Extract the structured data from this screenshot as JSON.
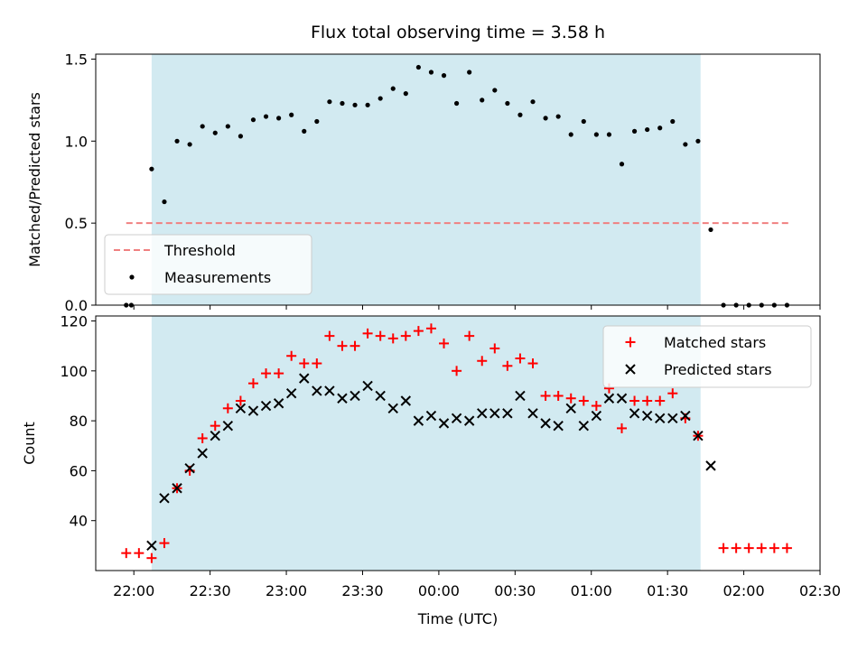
{
  "chart_data": [
    {
      "type": "scatter",
      "title": "Flux total observing time = 3.58 h",
      "ylabel": "Matched/Predicted stars",
      "ylim": [
        0,
        1.53
      ],
      "yticks": [
        "0.0",
        "0.5",
        "1.0",
        "1.5"
      ],
      "yticks_values": [
        0,
        0.5,
        1.0,
        1.5
      ],
      "shaded_region": {
        "start": "22:07",
        "end": "01:43"
      },
      "legend": {
        "placement": "lower-left",
        "entries": [
          "Threshold",
          "Measurements"
        ]
      },
      "series": [
        {
          "name": "Threshold",
          "style": "dashed-line",
          "color": "#f08080",
          "x": [
            "21:57",
            "02:18"
          ],
          "y": [
            0.5,
            0.5
          ]
        },
        {
          "name": "Measurements",
          "style": "dot",
          "color": "#000000",
          "x": [
            "21:57",
            "21:59",
            "22:07",
            "22:12",
            "22:17",
            "22:22",
            "22:27",
            "22:32",
            "22:37",
            "22:42",
            "22:47",
            "22:52",
            "22:57",
            "23:02",
            "23:07",
            "23:12",
            "23:17",
            "23:22",
            "23:27",
            "23:32",
            "23:37",
            "23:42",
            "23:47",
            "23:52",
            "23:57",
            "00:02",
            "00:07",
            "00:12",
            "00:17",
            "00:22",
            "00:27",
            "00:32",
            "00:37",
            "00:42",
            "00:47",
            "00:52",
            "00:57",
            "01:02",
            "01:07",
            "01:12",
            "01:17",
            "01:22",
            "01:27",
            "01:32",
            "01:37",
            "01:42",
            "01:47",
            "01:52",
            "01:57",
            "02:02",
            "02:07",
            "02:12",
            "02:17"
          ],
          "y": [
            0.0,
            0.0,
            0.83,
            0.63,
            1.0,
            0.98,
            1.09,
            1.05,
            1.09,
            1.03,
            1.13,
            1.15,
            1.14,
            1.16,
            1.06,
            1.12,
            1.24,
            1.23,
            1.22,
            1.22,
            1.26,
            1.32,
            1.29,
            1.45,
            1.42,
            1.4,
            1.23,
            1.42,
            1.25,
            1.31,
            1.23,
            1.16,
            1.24,
            1.14,
            1.15,
            1.04,
            1.12,
            1.04,
            1.04,
            0.86,
            1.06,
            1.07,
            1.08,
            1.12,
            0.98,
            1.0,
            0.46,
            0.0,
            0.0,
            0.0,
            0.0,
            0.0,
            0.0
          ]
        }
      ]
    },
    {
      "type": "scatter",
      "xlabel": "Time (UTC)",
      "ylabel": "Count",
      "ylim": [
        20,
        122
      ],
      "yticks": [
        "40",
        "60",
        "80",
        "100",
        "120"
      ],
      "yticks_values": [
        40,
        60,
        80,
        100,
        120
      ],
      "xticks": [
        "22:00",
        "22:30",
        "23:00",
        "23:30",
        "00:00",
        "00:30",
        "01:00",
        "01:30",
        "02:00",
        "02:30"
      ],
      "xlim": [
        "21:45",
        "02:30"
      ],
      "shaded_region": {
        "start": "22:07",
        "end": "01:43"
      },
      "legend": {
        "placement": "upper-right",
        "entries": [
          "Matched stars",
          "Predicted stars"
        ]
      },
      "series": [
        {
          "name": "Matched stars",
          "style": "plus",
          "color": "#ff0000",
          "x": [
            "21:57",
            "22:02",
            "22:07",
            "22:12",
            "22:17",
            "22:22",
            "22:27",
            "22:32",
            "22:37",
            "22:42",
            "22:47",
            "22:52",
            "22:57",
            "23:02",
            "23:07",
            "23:12",
            "23:17",
            "23:22",
            "23:27",
            "23:32",
            "23:37",
            "23:42",
            "23:47",
            "23:52",
            "23:57",
            "00:02",
            "00:07",
            "00:12",
            "00:17",
            "00:22",
            "00:27",
            "00:32",
            "00:37",
            "00:42",
            "00:47",
            "00:52",
            "00:57",
            "01:02",
            "01:07",
            "01:12",
            "01:17",
            "01:22",
            "01:27",
            "01:32",
            "01:37",
            "01:42",
            "01:52",
            "01:57",
            "02:02",
            "02:07",
            "02:12",
            "02:17"
          ],
          "y": [
            27,
            27,
            25,
            31,
            53,
            60,
            73,
            78,
            85,
            88,
            95,
            99,
            99,
            106,
            103,
            103,
            114,
            110,
            110,
            115,
            114,
            113,
            114,
            116,
            117,
            111,
            100,
            114,
            104,
            109,
            102,
            105,
            103,
            90,
            90,
            89,
            88,
            86,
            93,
            77,
            88,
            88,
            88,
            91,
            81,
            74,
            29,
            29,
            29,
            29,
            29,
            29
          ]
        },
        {
          "name": "Predicted stars",
          "style": "x",
          "color": "#000000",
          "x": [
            "22:07",
            "22:12",
            "22:17",
            "22:22",
            "22:27",
            "22:32",
            "22:37",
            "22:42",
            "22:47",
            "22:52",
            "22:57",
            "23:02",
            "23:07",
            "23:12",
            "23:17",
            "23:22",
            "23:27",
            "23:32",
            "23:37",
            "23:42",
            "23:47",
            "23:52",
            "23:57",
            "00:02",
            "00:07",
            "00:12",
            "00:17",
            "00:22",
            "00:27",
            "00:32",
            "00:37",
            "00:42",
            "00:47",
            "00:52",
            "00:57",
            "01:02",
            "01:07",
            "01:12",
            "01:17",
            "01:22",
            "01:27",
            "01:32",
            "01:37",
            "01:42",
            "01:47"
          ],
          "y": [
            30,
            49,
            53,
            61,
            67,
            74,
            78,
            85,
            84,
            86,
            87,
            91,
            97,
            92,
            92,
            89,
            90,
            94,
            90,
            85,
            88,
            80,
            82,
            79,
            81,
            80,
            83,
            83,
            83,
            90,
            83,
            79,
            78,
            85,
            78,
            82,
            89,
            89,
            83,
            82,
            81,
            81,
            82,
            74,
            62
          ]
        }
      ]
    }
  ]
}
